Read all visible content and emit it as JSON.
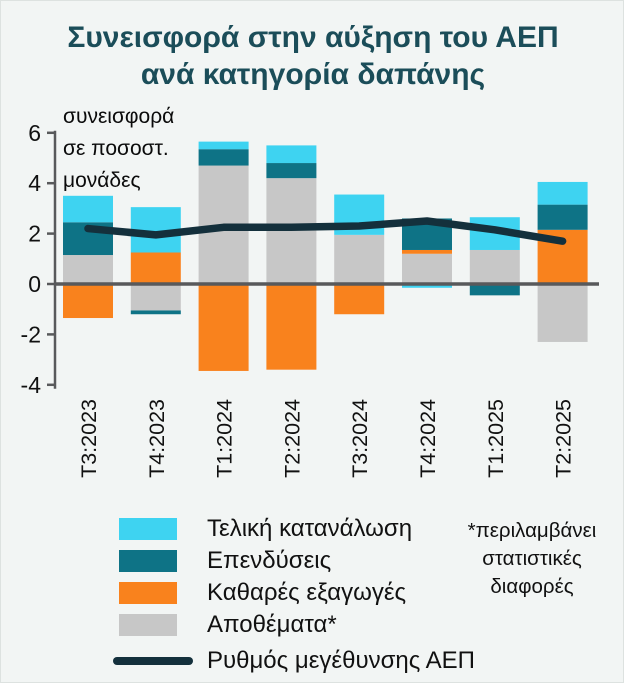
{
  "title": "Συνεισφορά στην αύξηση του ΑΕΠ\nανά κατηγορία δαπάνης",
  "annotation": "συνεισφορά\nσε ποσοστ.\nμονάδες",
  "footnote": "*περιλαμβάνει\nστατιστικές\nδιαφορές",
  "colors": {
    "background": "#F2F5F4",
    "title": "#1B4D59",
    "axis": "#58595B",
    "text": "#111111",
    "final_consumption": "#3ED3F1",
    "investments": "#0E7386",
    "net_exports": "#F9821D",
    "inventories": "#C7C7C7",
    "gdp_line": "#14303C"
  },
  "chart_data": {
    "type": "bar",
    "subtype": "stacked-bars-with-line-overlay",
    "title": "Συνεισφορά στην αύξηση του ΑΕΠ ανά κατηγορία δαπάνης",
    "ylabel": "συνεισφορά σε ποσοστ. μονάδες",
    "categories": [
      "Τ3:2023",
      "Τ4:2023",
      "Τ1:2024",
      "Τ2:2024",
      "Τ3:2024",
      "Τ4:2024",
      "Τ1:2025",
      "Τ2:2025"
    ],
    "series": [
      {
        "id": "inventories",
        "name": "Αποθέματα*",
        "color": "#C7C7C7",
        "values": [
          1.15,
          -1.05,
          4.7,
          4.2,
          1.95,
          1.2,
          1.35,
          -2.3
        ]
      },
      {
        "id": "net-exports",
        "name": "Καθαρές εξαγωγές",
        "color": "#F9821D",
        "values": [
          -1.35,
          1.25,
          -3.45,
          -3.4,
          -1.2,
          0.15,
          -0.05,
          2.15
        ]
      },
      {
        "id": "investments",
        "name": "Επενδύσεις",
        "color": "#0E7386",
        "values": [
          1.3,
          -0.15,
          0.65,
          0.6,
          0,
          1.25,
          -0.4,
          1.0
        ]
      },
      {
        "id": "final-consumption",
        "name": "Τελική κατανάλωση",
        "color": "#3ED3F1",
        "values": [
          1.05,
          1.8,
          0.3,
          0.7,
          1.6,
          -0.15,
          1.3,
          0.9
        ]
      }
    ],
    "line_series": {
      "id": "gdp-growth",
      "name": "Ρυθμός μεγέθυνσης ΑΕΠ",
      "color": "#14303C",
      "values": [
        2.2,
        1.95,
        2.25,
        2.25,
        2.3,
        2.5,
        2.15,
        1.7
      ]
    },
    "ylim": [
      -4,
      6
    ],
    "yticks": [
      6,
      4,
      2,
      0,
      -2,
      -4
    ],
    "grid": false,
    "legend_position": "bottom"
  },
  "legend": {
    "items": [
      {
        "label": "Τελική κατανάλωση",
        "color": "#3ED3F1",
        "kind": "swatch"
      },
      {
        "label": "Επενδύσεις",
        "color": "#0E7386",
        "kind": "swatch"
      },
      {
        "label": "Καθαρές εξαγωγές",
        "color": "#F9821D",
        "kind": "swatch"
      },
      {
        "label": "Αποθέματα*",
        "color": "#C7C7C7",
        "kind": "swatch"
      },
      {
        "label": "Ρυθμός μεγέθυνσης ΑΕΠ",
        "color": "#14303C",
        "kind": "line"
      }
    ]
  }
}
